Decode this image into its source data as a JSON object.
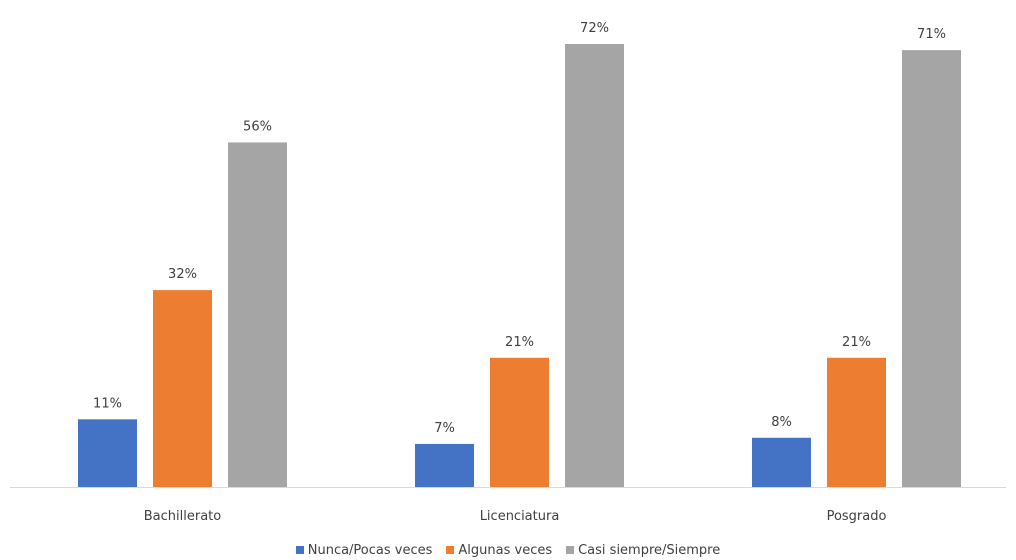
{
  "chart_data": {
    "type": "bar",
    "title": "",
    "xlabel": "",
    "ylabel": "",
    "categories": [
      "Bachillerato",
      "Licenciatura",
      "Posgrado"
    ],
    "series": [
      {
        "name": "Nunca/Pocas veces",
        "color": "#4472c4",
        "values": [
          11,
          7,
          8
        ],
        "labels": [
          "11%",
          "7%",
          "8%"
        ]
      },
      {
        "name": "Algunas veces",
        "color": "#ed7d31",
        "values": [
          32,
          21,
          21
        ],
        "labels": [
          "32%",
          "21%",
          "21%"
        ]
      },
      {
        "name": "Casi siempre/Siempre",
        "color": "#a5a5a5",
        "values": [
          56,
          72,
          71
        ],
        "labels": [
          "56%",
          "72%",
          "71%"
        ]
      }
    ],
    "ylim": [
      0,
      72
    ],
    "grid": false,
    "legend_position": "bottom",
    "axis_color": "#d9d9d9",
    "label_color": "#404040"
  }
}
